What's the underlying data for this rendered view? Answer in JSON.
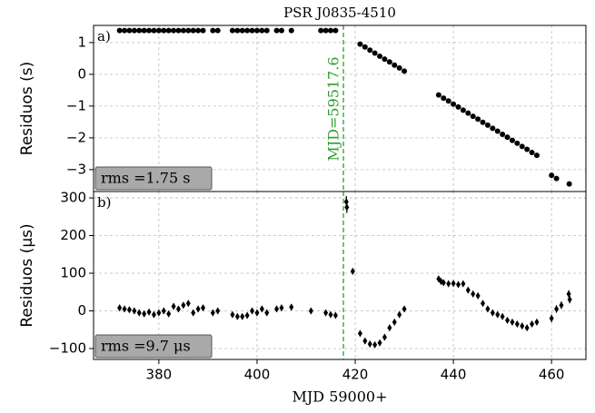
{
  "chart_data": [
    {
      "type": "scatter",
      "title": "PSR J0835-4510",
      "panel_label": "a)",
      "ylabel": "Residuos (s)",
      "box_text": "rms =1.75 s",
      "vline_x": 417.6,
      "vline_label": "MJD=59517.6",
      "color": "#000000",
      "vline_color": "#2ca02c",
      "grid": true,
      "xlim": [
        366.7,
        467
      ],
      "ylim": [
        -3.69,
        1.54
      ],
      "yticks": [
        {
          "value": -3,
          "label": "−3"
        },
        {
          "value": -2,
          "label": "−2"
        },
        {
          "value": -1,
          "label": "−1"
        },
        0,
        1
      ],
      "x": [
        372,
        373,
        374,
        375,
        376,
        377,
        378,
        379,
        380,
        381,
        382,
        383,
        384,
        385,
        386,
        387,
        388,
        389,
        391,
        392,
        395,
        396,
        397,
        398,
        399,
        400,
        401,
        402,
        404,
        405,
        407,
        413,
        414,
        415,
        416,
        421,
        422,
        423,
        424,
        425,
        426,
        427,
        428,
        429,
        430,
        437,
        438,
        439,
        440,
        441,
        442,
        443,
        444,
        445,
        446,
        447,
        448,
        449,
        450,
        451,
        452,
        453,
        454,
        455,
        456,
        457,
        460,
        461,
        463.6
      ],
      "values": [
        1.38,
        1.38,
        1.38,
        1.38,
        1.38,
        1.38,
        1.38,
        1.38,
        1.38,
        1.38,
        1.38,
        1.38,
        1.38,
        1.38,
        1.38,
        1.38,
        1.38,
        1.38,
        1.38,
        1.38,
        1.38,
        1.38,
        1.38,
        1.38,
        1.38,
        1.38,
        1.38,
        1.38,
        1.38,
        1.38,
        1.38,
        1.38,
        1.38,
        1.38,
        1.38,
        0.95,
        0.86,
        0.76,
        0.67,
        0.57,
        0.48,
        0.39,
        0.29,
        0.2,
        0.1,
        -0.65,
        -0.75,
        -0.84,
        -0.94,
        -1.03,
        -1.13,
        -1.22,
        -1.32,
        -1.41,
        -1.51,
        -1.6,
        -1.7,
        -1.79,
        -1.89,
        -1.98,
        -2.08,
        -2.17,
        -2.27,
        -2.36,
        -2.46,
        -2.55,
        -3.18,
        -3.28,
        -3.45
      ]
    },
    {
      "type": "errorbar",
      "panel_label": "b)",
      "ylabel": "Residuos (μs)",
      "xlabel": "MJD 59000+",
      "box_text": "rms =9.7 μs",
      "vline_x": 417.6,
      "color": "#000000",
      "vline_color": "#2ca02c",
      "grid": true,
      "xlim": [
        366.7,
        467
      ],
      "ylim": [
        -129,
        317
      ],
      "xticks": [
        380,
        400,
        420,
        440,
        460
      ],
      "yticks": [
        {
          "value": -100,
          "label": "−100"
        },
        0,
        100,
        200,
        300
      ],
      "x": [
        372,
        373,
        374,
        375,
        376,
        377,
        378,
        379,
        380,
        381,
        382,
        383,
        384,
        385,
        386,
        387,
        388,
        389,
        391,
        392,
        395,
        396,
        397,
        398,
        399,
        400,
        401,
        402,
        404,
        405,
        407,
        411,
        414,
        415,
        416,
        418.2,
        418.3,
        419.5,
        421,
        422,
        423,
        424,
        425,
        426,
        427,
        428,
        429,
        430,
        437,
        437.5,
        438,
        439,
        440,
        441,
        442,
        443,
        444,
        445,
        446,
        447,
        448,
        449,
        450,
        451,
        452,
        453,
        454,
        455,
        456,
        457,
        460,
        461,
        462,
        463.5,
        463.7
      ],
      "values": [
        8,
        5,
        3,
        0,
        -5,
        -8,
        -3,
        -10,
        -5,
        0,
        -8,
        12,
        5,
        15,
        20,
        -5,
        5,
        8,
        -5,
        0,
        -10,
        -15,
        -15,
        -12,
        0,
        -5,
        5,
        -5,
        5,
        8,
        10,
        0,
        -5,
        -10,
        -12,
        290,
        275,
        105,
        -60,
        -80,
        -88,
        -90,
        -85,
        -70,
        -45,
        -30,
        -10,
        5,
        85,
        78,
        75,
        72,
        73,
        70,
        72,
        55,
        45,
        40,
        20,
        5,
        -5,
        -10,
        -15,
        -25,
        -30,
        -35,
        -40,
        -45,
        -35,
        -30,
        -20,
        5,
        15,
        45,
        30
      ],
      "errors": [
        8,
        8,
        8,
        8,
        8,
        8,
        8,
        8,
        8,
        8,
        8,
        8,
        8,
        8,
        8,
        8,
        8,
        8,
        8,
        8,
        8,
        8,
        8,
        8,
        8,
        8,
        8,
        8,
        8,
        8,
        8,
        8,
        8,
        8,
        8,
        15,
        15,
        8,
        8,
        8,
        8,
        8,
        8,
        8,
        8,
        8,
        8,
        8,
        8,
        8,
        8,
        8,
        8,
        8,
        8,
        8,
        8,
        8,
        8,
        8,
        8,
        8,
        8,
        8,
        8,
        8,
        8,
        8,
        8,
        8,
        10,
        10,
        10,
        10,
        10
      ]
    }
  ]
}
